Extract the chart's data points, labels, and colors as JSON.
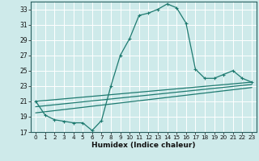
{
  "xlabel": "Humidex (Indice chaleur)",
  "background_color": "#ceeaea",
  "grid_color": "#ffffff",
  "line_color": "#1e7a70",
  "ylim": [
    17,
    34
  ],
  "xlim": [
    -0.5,
    23.5
  ],
  "yticks": [
    17,
    19,
    21,
    23,
    25,
    27,
    29,
    31,
    33
  ],
  "xticks": [
    0,
    1,
    2,
    3,
    4,
    5,
    6,
    7,
    8,
    9,
    10,
    11,
    12,
    13,
    14,
    15,
    16,
    17,
    18,
    19,
    20,
    21,
    22,
    23
  ],
  "main_series_x": [
    0,
    1,
    2,
    3,
    4,
    5,
    6,
    7,
    8,
    9,
    10,
    11,
    12,
    13,
    14,
    15,
    16,
    17,
    18,
    19,
    20,
    21,
    22,
    23
  ],
  "main_series_y": [
    21.0,
    19.2,
    18.6,
    18.4,
    18.2,
    18.2,
    17.2,
    18.5,
    23.0,
    27.0,
    29.2,
    32.2,
    32.5,
    33.0,
    33.7,
    33.2,
    31.2,
    25.2,
    24.0,
    24.0,
    24.5,
    25.0,
    24.0,
    23.5
  ],
  "line2_x": [
    0,
    23
  ],
  "line2_y": [
    21.0,
    23.5
  ],
  "line3_x": [
    0,
    23
  ],
  "line3_y": [
    20.3,
    23.2
  ],
  "line4_x": [
    0,
    23
  ],
  "line4_y": [
    19.5,
    22.8
  ]
}
